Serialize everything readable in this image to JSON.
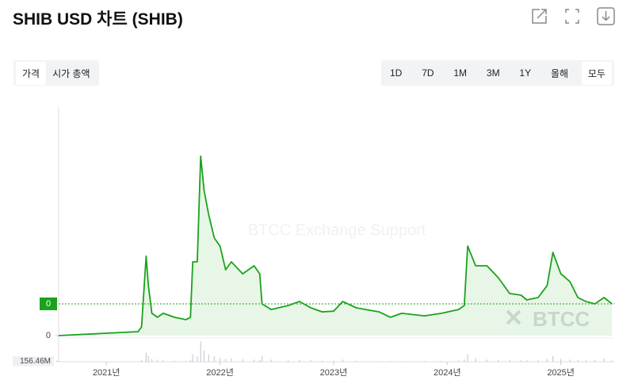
{
  "title": "SHIB USD 차트 (SHIB)",
  "tabs": [
    "가격",
    "시가 총액"
  ],
  "ranges": [
    "1D",
    "7D",
    "1M",
    "3M",
    "1Y",
    "올해",
    "모두"
  ],
  "watermark": "BTCC Exchange Support",
  "logo": "BTCC",
  "chart_data": {
    "type": "line",
    "x": [
      2020.58,
      2021.28,
      2021.31,
      2021.35,
      2021.37,
      2021.4,
      2021.45,
      2021.5,
      2021.6,
      2021.7,
      2021.74,
      2021.76,
      2021.8,
      2021.83,
      2021.86,
      2021.9,
      2021.95,
      2022.0,
      2022.05,
      2022.1,
      2022.2,
      2022.3,
      2022.35,
      2022.37,
      2022.45,
      2022.6,
      2022.7,
      2022.8,
      2022.9,
      2023.0,
      2023.08,
      2023.2,
      2023.4,
      2023.5,
      2023.6,
      2023.8,
      2023.95,
      2024.1,
      2024.15,
      2024.18,
      2024.25,
      2024.35,
      2024.45,
      2024.55,
      2024.65,
      2024.7,
      2024.8,
      2024.88,
      2024.93,
      2025.0,
      2025.08,
      2025.15,
      2025.22,
      2025.3,
      2025.38,
      2025.45
    ],
    "series": [
      {
        "name": "SHIB",
        "color": "#1aa31a",
        "values": [
          0,
          1.7e-06,
          3.7e-06,
          3.38e-05,
          2.13e-05,
          9.5e-06,
          7.8e-06,
          9.5e-06,
          7.8e-06,
          6.8e-06,
          7.8e-06,
          3.14e-05,
          3.14e-05,
          7.63e-05,
          6.18e-05,
          5.16e-05,
          4.15e-05,
          3.81e-05,
          2.8e-05,
          3.14e-05,
          2.63e-05,
          2.97e-05,
          2.63e-05,
          1.35e-05,
          1.11e-05,
          1.28e-05,
          1.45e-05,
          1.18e-05,
          1.01e-05,
          1.04e-05,
          1.45e-05,
          1.18e-05,
          1.01e-05,
          7.8e-06,
          9.5e-06,
          8.4e-06,
          9.5e-06,
          1.11e-05,
          1.28e-05,
          3.81e-05,
          2.97e-05,
          2.97e-05,
          2.46e-05,
          1.79e-05,
          1.72e-05,
          1.52e-05,
          1.62e-05,
          2.13e-05,
          3.54e-05,
          2.63e-05,
          2.3e-05,
          1.62e-05,
          1.45e-05,
          1.35e-05,
          1.62e-05,
          1.35e-05
        ]
      }
    ],
    "last_price": 1.35e-05,
    "last_price_label": "0",
    "xlim": [
      2020.58,
      2025.47
    ],
    "xticks": [
      {
        "value": 2021,
        "label": "2021년"
      },
      {
        "value": 2022,
        "label": "2022년"
      },
      {
        "value": 2023,
        "label": "2023년"
      },
      {
        "value": 2024,
        "label": "2024년"
      },
      {
        "value": 2025,
        "label": "2025년"
      }
    ],
    "ylim": [
      0,
      9.72e-05
    ],
    "yticks": [
      0
    ],
    "volume": {
      "color": "#c9ced6",
      "values": [
        0,
        200000000.0,
        500000000.0,
        2500000000.0,
        1500000000.0,
        800000000.0,
        500000000.0,
        400000000.0,
        300000000.0,
        300000000.0,
        500000000.0,
        2000000000.0,
        1500000000.0,
        5500000000.0,
        3000000000.0,
        2000000000.0,
        1500000000.0,
        1000000000.0,
        800000000.0,
        900000000.0,
        700000000.0,
        600000000.0,
        500000000.0,
        1500000000.0,
        600000000.0,
        400000000.0,
        500000000.0,
        400000000.0,
        300000000.0,
        300000000.0,
        600000000.0,
        300000000.0,
        200000000.0,
        200000000.0,
        200000000.0,
        200000000.0,
        300000000.0,
        400000000.0,
        600000000.0,
        2000000000.0,
        1000000000.0,
        600000000.0,
        500000000.0,
        500000000.0,
        400000000.0,
        400000000.0,
        400000000.0,
        800000000.0,
        1500000000.0,
        800000000.0,
        600000000.0,
        500000000.0,
        400000000.0,
        500000000.0,
        900000000.0,
        300000000.0
      ],
      "ylim": [
        0,
        6000000000
      ],
      "yticks": [
        {
          "value": 156460000,
          "label": "156.46M"
        }
      ]
    }
  }
}
